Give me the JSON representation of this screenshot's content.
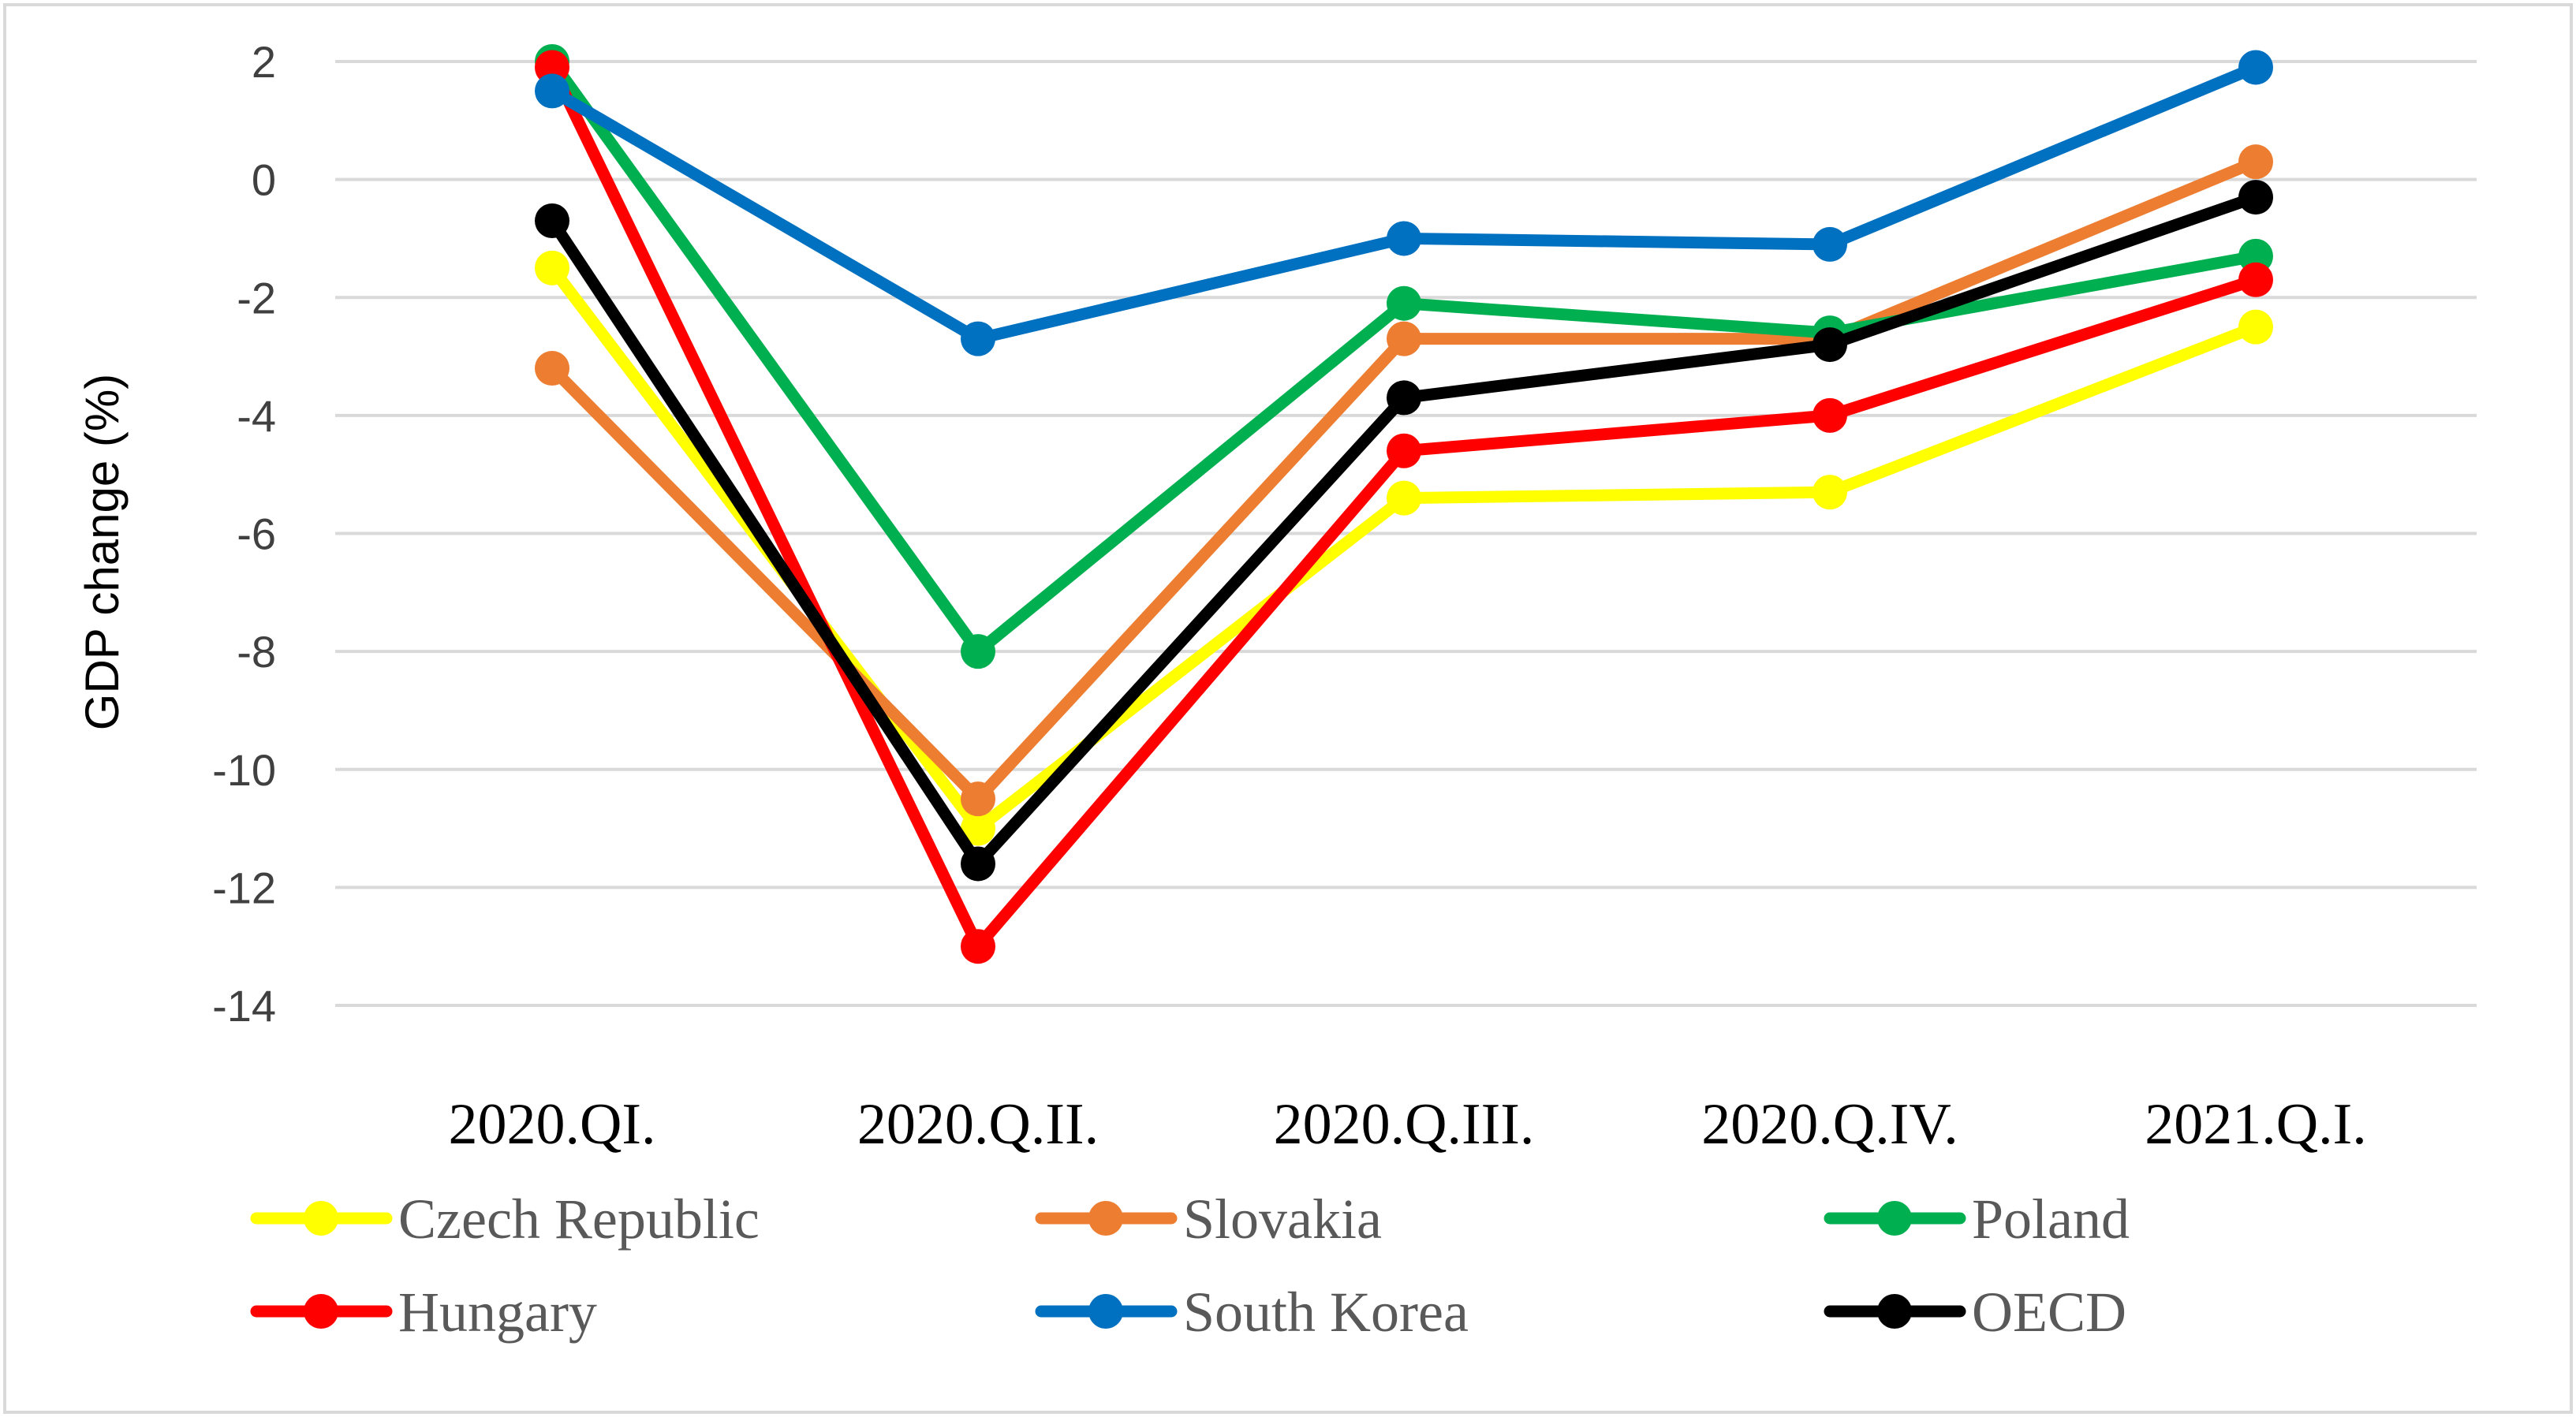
{
  "chart_data": {
    "type": "line",
    "title": "",
    "xlabel": "",
    "ylabel": "GDP change (%)",
    "ylim": [
      -14,
      2
    ],
    "yticks": [
      2,
      0,
      -2,
      -4,
      -6,
      -8,
      -10,
      -12,
      -14
    ],
    "categories": [
      "2020.QI.",
      "2020.Q.II.",
      "2020.Q.III.",
      "2020.Q.IV.",
      "2021.Q.I."
    ],
    "grid": true,
    "legend_position": "bottom",
    "series": [
      {
        "name": "Czech Republic",
        "color": "#FFFF00",
        "values": [
          -1.5,
          -11.0,
          -5.4,
          -5.3,
          -2.5
        ]
      },
      {
        "name": "Slovakia",
        "color": "#ED7D31",
        "values": [
          -3.2,
          -10.5,
          -2.7,
          -2.7,
          0.3
        ]
      },
      {
        "name": "Poland",
        "color": "#00B050",
        "values": [
          2.0,
          -8.0,
          -2.1,
          -2.6,
          -1.3
        ]
      },
      {
        "name": "Hungary",
        "color": "#FF0000",
        "values": [
          1.9,
          -13.0,
          -4.6,
          -4.0,
          -1.7
        ]
      },
      {
        "name": "South Korea",
        "color": "#0070C0",
        "values": [
          1.5,
          -2.7,
          -1.0,
          -1.1,
          1.9
        ]
      },
      {
        "name": "OECD",
        "color": "#000000",
        "values": [
          -0.7,
          -11.6,
          -3.7,
          -2.8,
          -0.3
        ]
      }
    ]
  }
}
